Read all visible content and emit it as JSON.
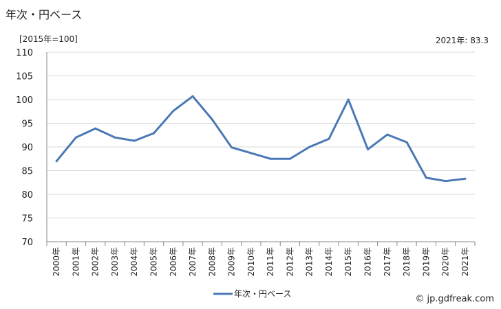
{
  "header": {
    "title": "年次・円ベース",
    "unit": "[2015年=100]",
    "latest": "2021年: 83.3"
  },
  "footer": {
    "credit": "© jp.gdfreak.com"
  },
  "colors": {
    "series": "#4a78b5",
    "grid": "#d9d9d9",
    "axis": "#888888"
  },
  "chart_data": {
    "type": "line",
    "categories": [
      "2000年",
      "2001年",
      "2002年",
      "2003年",
      "2004年",
      "2005年",
      "2006年",
      "2007年",
      "2008年",
      "2009年",
      "2010年",
      "2011年",
      "2012年",
      "2013年",
      "2014年",
      "2015年",
      "2016年",
      "2017年",
      "2018年",
      "2019年",
      "2020年",
      "2021年"
    ],
    "series": [
      {
        "name": "年次・円ベース",
        "values": [
          87.0,
          92.0,
          93.9,
          92.0,
          91.3,
          92.9,
          97.6,
          100.7,
          95.8,
          89.9,
          88.7,
          87.5,
          87.5,
          90.0,
          91.7,
          100.0,
          89.5,
          92.6,
          91.0,
          83.5,
          82.8,
          83.3
        ]
      }
    ],
    "yticks": [
      70,
      75,
      80,
      85,
      90,
      95,
      100,
      105,
      110
    ],
    "ylim": [
      70,
      110
    ],
    "grid": true,
    "legend": "bottom-center"
  }
}
